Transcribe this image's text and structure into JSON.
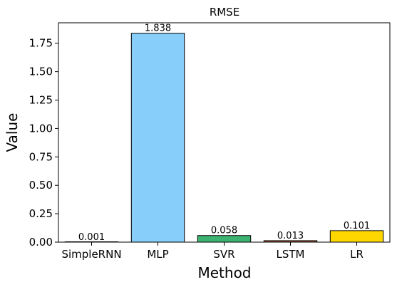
{
  "chart_data": {
    "type": "bar",
    "title": "RMSE",
    "xlabel": "Method",
    "ylabel": "Value",
    "categories": [
      "SimpleRNN",
      "MLP",
      "SVR",
      "LSTM",
      "LR"
    ],
    "values": [
      0.001,
      1.838,
      0.058,
      0.013,
      0.101
    ],
    "value_labels": [
      "0.001",
      "1.838",
      "0.058",
      "0.013",
      "0.101"
    ],
    "colors": [
      "#ff8c00",
      "#87cefa",
      "#3cb371",
      "#a0522d",
      "#ffd700"
    ],
    "edge_color": "#000000",
    "ylim": [
      0,
      1.93
    ],
    "yticks": [
      0.0,
      0.25,
      0.5,
      0.75,
      1.0,
      1.25,
      1.5,
      1.75
    ],
    "ytick_labels": [
      "0.00",
      "0.25",
      "0.50",
      "0.75",
      "1.00",
      "1.25",
      "1.50",
      "1.75"
    ],
    "grid": false,
    "legend": "none"
  }
}
